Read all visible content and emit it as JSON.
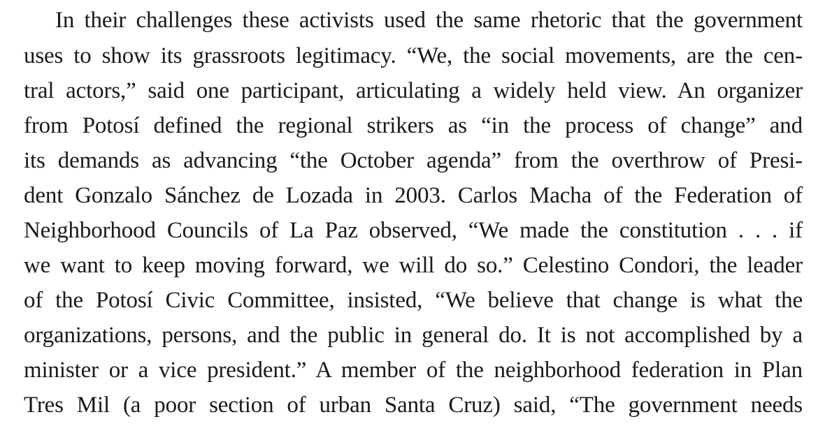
{
  "paragraph": {
    "lines": [
      "In their challenges these activists used the same rhetoric that the government",
      "uses to show its grassroots legitimacy. “We, the social movements, are the cen-",
      "tral actors,” said one participant, articulating a widely held view. An organizer",
      "from Potosí defined the regional strikers as “in the process of change” and",
      "its demands as advancing “the October agenda” from the overthrow of Presi-",
      "dent Gonzalo Sánchez de Lozada in 2003. Carlos Macha of the Federation of",
      "Neighborhood Councils of La Paz observed, “We made the constitution . . . if",
      "we want to keep moving forward, we will do so.” Celestino Condori, the leader",
      "of the Potosí Civic Committee, insisted, “We believe that change is what the",
      "organizations, persons, and the public in general do. It is not accomplished by a",
      "minister or a vice president.” A member of the neighborhood federation in Plan",
      "Tres Mil (a poor section of urban Santa Cruz) said, “The government needs"
    ]
  }
}
